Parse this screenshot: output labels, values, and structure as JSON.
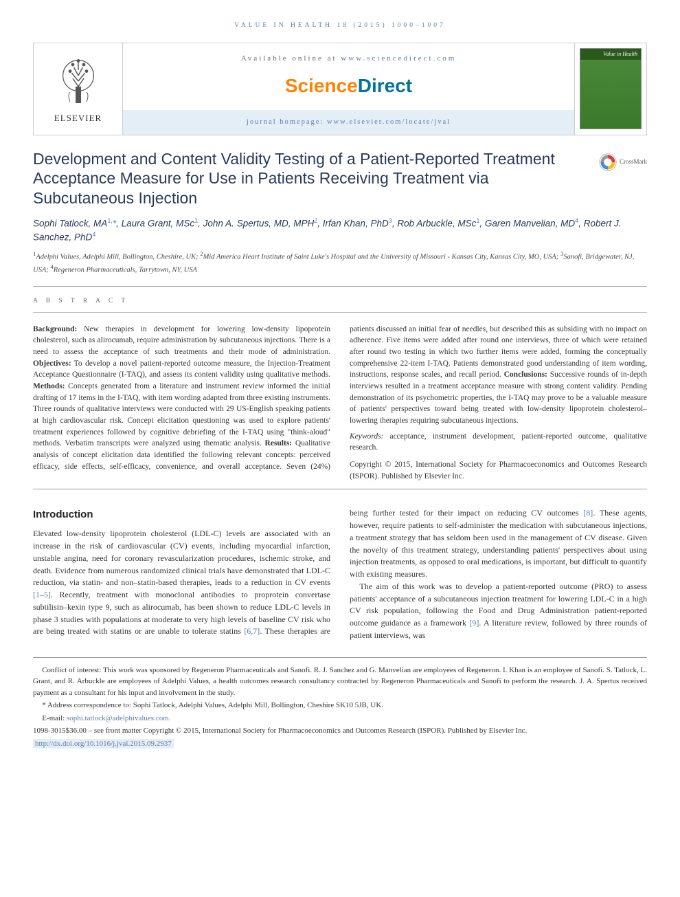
{
  "runningHead": "VALUE IN HEALTH 18 (2015) 1000–1007",
  "header": {
    "availablePrefix": "Available online at ",
    "availableLink": "www.sciencedirect.com",
    "sdOrange": "Science",
    "sdBlue": "Direct",
    "homepagePrefix": "journal homepage: ",
    "homepageLink": "www.elsevier.com/locate/jval",
    "elsevierLabel": "ELSEVIER",
    "coverTitle": "Value in Health"
  },
  "title": "Development and Content Validity Testing of a Patient-Reported Treatment Acceptance Measure for Use in Patients Receiving Treatment via Subcutaneous Injection",
  "crossmark": "CrossMark",
  "authorsHtml": "Sophi Tatlock, MA<sup>1,</sup><span class='star'>*</span>, Laura Grant, MSc<sup>1</sup>, John A. Spertus, MD, MPH<sup>2</sup>, Irfan Khan, PhD<sup>3</sup>, Rob Arbuckle, MSc<sup>1</sup>, Garen Manvelian, MD<sup>4</sup>, Robert J. Sanchez, PhD<sup>4</sup>",
  "affiliationsHtml": "<sup>1</sup>Adelphi Values, Adelphi Mill, Bollington, Cheshire, UK; <sup>2</sup>Mid America Heart Institute of Saint Luke's Hospital and the University of Missouri - Kansas City, Kansas City, MO, USA; <sup>3</sup>Sanofi, Bridgewater, NJ, USA; <sup>4</sup>Regeneron Pharmaceuticals, Tarrytown, NY, USA",
  "abstractLabel": "A B S T R A C T",
  "abstractHtml": "<b>Background:</b> New therapies in development for lowering low-density lipoprotein cholesterol, such as alirocumab, require administration by subcutaneous injections. There is a need to assess the acceptance of such treatments and their mode of administration. <b>Objectives:</b> To develop a novel patient-reported outcome measure, the Injection-Treatment Acceptance Questionnaire (I-TAQ), and assess its content validity using qualitative methods. <b>Methods:</b> Concepts generated from a literature and instrument review informed the initial drafting of 17 items in the I-TAQ, with item wording adapted from three existing instruments. Three rounds of qualitative interviews were conducted with 29 US-English speaking patients at high cardiovascular risk. Concept elicitation questioning was used to explore patients' treatment experiences followed by cognitive debriefing of the I-TAQ using \"think-aloud\" methods. Verbatim transcripts were analyzed using thematic analysis. <b>Results:</b> Qualitative analysis of concept elicitation data identified the following relevant concepts: perceived efficacy, side effects, self-efficacy, convenience, and overall acceptance. Seven (24%) patients discussed an initial fear of needles, but described this as subsiding with no impact on adherence. Five items were added after round one interviews, three of which were retained after round two testing in which two further items were added, forming the conceptually comprehensive 22-item I-TAQ. Patients demonstrated good understanding of item wording, instructions, response scales, and recall period. <b>Conclusions:</b> Successive rounds of in-depth interviews resulted in a treatment acceptance measure with strong content validity. Pending demonstration of its psychometric properties, the I-TAQ may prove to be a valuable measure of patients' perspectives toward being treated with low-density lipoprotein cholesterol–lowering therapies requiring subcutaneous injections.<div class='keywords'><span class='keywords-label'>Keywords:</span> acceptance, instrument development, patient-reported outcome, qualitative research.</div><div class='copyright-block'>Copyright &copy; 2015, International Society for Pharmacoeconomics and Outcomes Research (ISPOR). Published by Elsevier Inc.</div>",
  "introHeading": "Introduction",
  "introHtml": "<p>Elevated low-density lipoprotein cholesterol (LDL-C) levels are associated with an increase in the risk of cardiovascular (CV) events, including myocardial infarction, unstable angina, need for coronary revascularization procedures, ischemic stroke, and death. Evidence from numerous randomized clinical trials have demonstrated that LDL-C reduction, via statin- and non–statin-based therapies, leads to a reduction in CV events <span class='ref'>[1–5]</span>. Recently, treatment with monoclonal antibodies to proprotein convertase subtilisin–kexin type 9, such as alirocumab, has been shown to reduce LDL-C levels in phase 3 studies with populations at moderate to very high levels of baseline CV risk who are being treated with statins or are unable to tolerate statins <span class='ref'>[6,7]</span>. These therapies are being further tested for their impact on reducing CV outcomes <span class='ref'>[8]</span>. These agents, however, require patients to self-administer the medication with subcutaneous injections, a treatment strategy that has seldom been used in the management of CV disease. Given the novelty of this treatment strategy, understanding patients' perspectives about using injection treatments, as opposed to oral medications, is important, but difficult to quantify with existing measures.</p><p>The aim of this work was to develop a patient-reported outcome (PRO) to assess patients' acceptance of a subcutaneous injection treatment for lowering LDL-C in a high CV risk population, following the Food and Drug Administration patient-reported outcome guidance as a framework <span class='ref'>[9]</span>. A literature review, followed by three rounds of patient interviews, was</p>",
  "footnotes": {
    "conflict": "Conflict of interest: This work was sponsored by Regeneron Pharmaceuticals and Sanofi. R. J. Sanchez and G. Manvelian are employees of Regeneron. I. Khan is an employee of Sanofi. S. Tatlock, L. Grant, and R. Arbuckle are employees of Adelphi Values, a health outcomes research consultancy contracted by Regeneron Pharmaceuticals and Sanofi to perform the research. J. A. Spertus received payment as a consultant for his input and involvement in the study.",
    "correspondence": "* Address correspondence to: Sophi Tatlock, Adelphi Values, Adelphi Mill, Bollington, Cheshire SK10 5JB, UK.",
    "emailLabel": "E-mail: ",
    "email": "sophi.tatlock@adelphivalues.com.",
    "issn": "1098-3015$36.00 – see front matter Copyright © 2015, International Society for Pharmacoeconomics and Outcomes Research (ISPOR). Published by Elsevier Inc.",
    "doi": "http://dx.doi.org/10.1016/j.jval.2015.09.2937"
  }
}
